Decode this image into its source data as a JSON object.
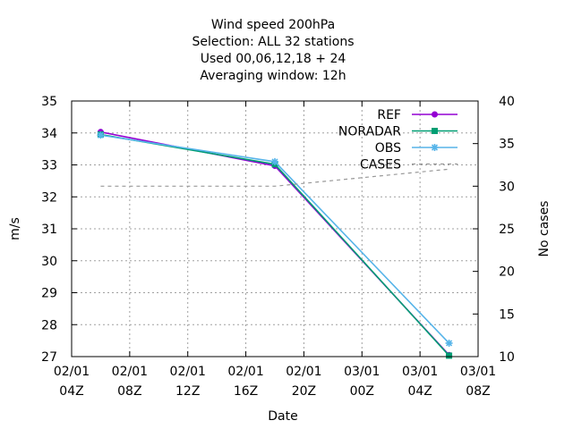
{
  "chart_data": {
    "type": "line",
    "title_lines": [
      "Wind speed 200hPa",
      "Selection: ALL      32 stations",
      "Used  00,06,12,18 + 24",
      "Averaging window: 12h"
    ],
    "xlabel": "Date",
    "ylabel": "m/s",
    "y2label": "No cases",
    "x_ticks": [
      {
        "d": "02/01",
        "h": "04Z"
      },
      {
        "d": "02/01",
        "h": "08Z"
      },
      {
        "d": "02/01",
        "h": "12Z"
      },
      {
        "d": "02/01",
        "h": "16Z"
      },
      {
        "d": "02/01",
        "h": "20Z"
      },
      {
        "d": "03/01",
        "h": "00Z"
      },
      {
        "d": "03/01",
        "h": "04Z"
      },
      {
        "d": "03/01",
        "h": "08Z"
      }
    ],
    "xlim_hours": [
      0,
      28
    ],
    "ylim": [
      27,
      35
    ],
    "y_ticks": [
      27,
      28,
      29,
      30,
      31,
      32,
      33,
      34,
      35
    ],
    "y2lim": [
      10,
      40
    ],
    "y2_ticks": [
      10,
      15,
      20,
      25,
      30,
      35,
      40
    ],
    "grid": true,
    "legend_position": "top-right",
    "series": [
      {
        "name": "REF",
        "color": "#9400d3",
        "marker": "circle",
        "axis": "y",
        "dash": false,
        "points": [
          [
            2,
            34.03
          ],
          [
            14,
            32.97
          ],
          [
            26,
            27.05
          ]
        ]
      },
      {
        "name": "NORADAR",
        "color": "#009e73",
        "marker": "square",
        "axis": "y",
        "dash": false,
        "points": [
          [
            2,
            33.95
          ],
          [
            14,
            33.02
          ],
          [
            26,
            27.03
          ]
        ]
      },
      {
        "name": "OBS",
        "color": "#56b4e9",
        "marker": "star",
        "axis": "y",
        "dash": false,
        "points": [
          [
            2,
            33.93
          ],
          [
            14,
            33.1
          ],
          [
            26,
            27.42
          ]
        ]
      },
      {
        "name": "CASES",
        "color": "#999999",
        "marker": "none",
        "axis": "y2",
        "dash": true,
        "points": [
          [
            2,
            30
          ],
          [
            14,
            30
          ],
          [
            26,
            32
          ]
        ]
      }
    ]
  }
}
